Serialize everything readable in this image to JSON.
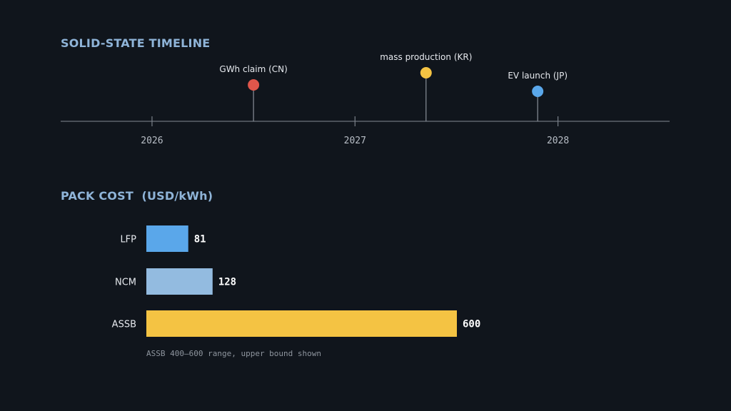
{
  "chart_data": [
    {
      "type": "timeline",
      "title": "SOLID-STATE TIMELINE",
      "xlim": [
        2025.55,
        2028.55
      ],
      "ticks": [
        "2026",
        "2027",
        "2028"
      ],
      "tick_values": [
        2026,
        2027,
        2028
      ],
      "events": [
        {
          "label": "GWh claim (CN)",
          "x": 2026.5,
          "color": "#e0564b",
          "level": "low"
        },
        {
          "label": "mass production (KR)",
          "x": 2027.35,
          "color": "#f4c343",
          "level": "high"
        },
        {
          "label": "EV launch (JP)",
          "x": 2027.9,
          "color": "#5aa7ea",
          "level": "mid"
        }
      ]
    },
    {
      "type": "bar",
      "orientation": "horizontal",
      "title": "PACK COST  (USD/kWh)",
      "categories": [
        "LFP",
        "NCM",
        "ASSB"
      ],
      "values": [
        81,
        128,
        600
      ],
      "colors": [
        "#5aa7ea",
        "#93bbe0",
        "#f4c343"
      ],
      "value_labels": [
        "81",
        "128",
        "600"
      ],
      "xlim": [
        0,
        600
      ],
      "note": "ASSB 400–600 range, upper bound shown"
    }
  ]
}
